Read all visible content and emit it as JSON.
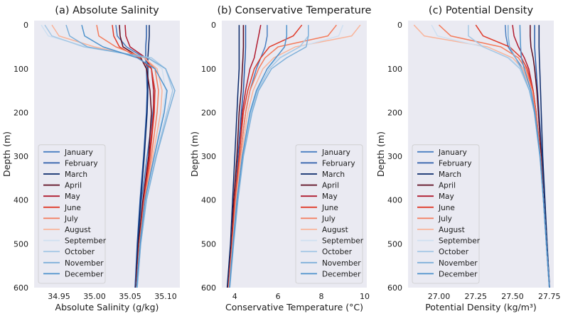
{
  "chart_data": [
    {
      "type": "line",
      "title": "(a) Absolute Salinity",
      "xlabel": "Absolute Salinity (g/kg)",
      "ylabel": "Depth (m)",
      "xlim": [
        34.915,
        35.12
      ],
      "ylim": [
        600,
        -10
      ],
      "xticks": [
        34.95,
        35.0,
        35.05,
        35.1
      ],
      "xtick_labels": [
        "34.95",
        "35.00",
        "35.05",
        "35.10"
      ],
      "yticks": [
        0,
        100,
        200,
        300,
        400,
        500,
        600
      ],
      "ytick_labels": [
        "0",
        "100",
        "200",
        "300",
        "400",
        "500",
        "600"
      ],
      "grid": false,
      "legend": "lower-left",
      "depth": [
        0,
        25,
        50,
        75,
        100,
        150,
        200,
        300,
        400,
        500,
        600
      ],
      "series": [
        {
          "name": "January",
          "color": "#4a7fc1",
          "values": [
            35.03,
            35.032,
            35.045,
            35.07,
            35.08,
            35.085,
            35.082,
            35.074,
            35.066,
            35.061,
            35.057
          ]
        },
        {
          "name": "February",
          "color": "#2a5ca8",
          "values": [
            35.073,
            35.073,
            35.072,
            35.072,
            35.073,
            35.074,
            35.073,
            35.069,
            35.064,
            35.06,
            35.057
          ]
        },
        {
          "name": "March",
          "color": "#0b2a6b",
          "values": [
            35.077,
            35.077,
            35.076,
            35.075,
            35.075,
            35.075,
            35.074,
            35.07,
            35.065,
            35.061,
            35.058
          ]
        },
        {
          "name": "April",
          "color": "#5c0a1e",
          "values": [
            35.035,
            35.036,
            35.04,
            35.065,
            35.073,
            35.078,
            35.08,
            35.076,
            35.068,
            35.062,
            35.058
          ]
        },
        {
          "name": "May",
          "color": "#b01b2f",
          "values": [
            35.043,
            35.044,
            35.05,
            35.072,
            35.08,
            35.083,
            35.083,
            35.077,
            35.069,
            35.063,
            35.059
          ]
        },
        {
          "name": "June",
          "color": "#e03b2a",
          "values": [
            35.025,
            35.027,
            35.035,
            35.062,
            35.08,
            35.085,
            35.084,
            35.078,
            35.07,
            35.063,
            35.059
          ]
        },
        {
          "name": "July",
          "color": "#f47c5c",
          "values": [
            35.003,
            35.006,
            35.03,
            35.07,
            35.085,
            35.09,
            35.088,
            35.08,
            35.07,
            35.063,
            35.059
          ]
        },
        {
          "name": "August",
          "color": "#f9b49a",
          "values": [
            34.94,
            34.95,
            35.0,
            35.07,
            35.088,
            35.095,
            35.093,
            35.082,
            35.071,
            35.064,
            35.059
          ]
        },
        {
          "name": "September",
          "color": "#cfe0f1",
          "values": [
            34.925,
            34.935,
            34.99,
            35.075,
            35.095,
            35.1,
            35.096,
            35.084,
            35.072,
            35.064,
            35.059
          ]
        },
        {
          "name": "October",
          "color": "#a6c8e5",
          "values": [
            34.93,
            34.94,
            34.985,
            35.08,
            35.1,
            35.11,
            35.102,
            35.086,
            35.073,
            35.065,
            35.06
          ]
        },
        {
          "name": "November",
          "color": "#7eb0d9",
          "values": [
            34.96,
            34.965,
            34.99,
            35.075,
            35.1,
            35.113,
            35.104,
            35.087,
            35.073,
            35.065,
            35.06
          ]
        },
        {
          "name": "December",
          "color": "#4f93cc",
          "values": [
            34.982,
            34.986,
            35.012,
            35.06,
            35.085,
            35.102,
            35.098,
            35.084,
            35.071,
            35.064,
            35.059
          ]
        }
      ]
    },
    {
      "type": "line",
      "title": "(b) Conservative Temperature",
      "xlabel": "Conservative Temperature (°C)",
      "ylabel": "Depth (m)",
      "xlim": [
        3.4,
        10.1
      ],
      "ylim": [
        600,
        -10
      ],
      "xticks": [
        4,
        6,
        8,
        10
      ],
      "xtick_labels": [
        "4",
        "6",
        "8",
        "10"
      ],
      "yticks": [
        0,
        100,
        200,
        300,
        400,
        500,
        600
      ],
      "ytick_labels": [
        "0",
        "100",
        "200",
        "300",
        "400",
        "500",
        "600"
      ],
      "grid": false,
      "legend": "lower-right",
      "depth": [
        0,
        25,
        50,
        75,
        100,
        150,
        200,
        300,
        400,
        500,
        600
      ],
      "series": [
        {
          "name": "January",
          "color": "#4a7fc1",
          "values": [
            5.5,
            5.5,
            5.4,
            5.2,
            5.0,
            4.7,
            4.5,
            4.25,
            4.05,
            3.85,
            3.7
          ]
        },
        {
          "name": "February",
          "color": "#2a5ca8",
          "values": [
            4.5,
            4.5,
            4.5,
            4.48,
            4.45,
            4.4,
            4.3,
            4.15,
            4.0,
            3.85,
            3.7
          ]
        },
        {
          "name": "March",
          "color": "#0b2a6b",
          "values": [
            4.2,
            4.2,
            4.2,
            4.2,
            4.2,
            4.15,
            4.1,
            4.0,
            3.9,
            3.8,
            3.65
          ]
        },
        {
          "name": "April",
          "color": "#5c0a1e",
          "values": [
            4.4,
            4.4,
            4.4,
            4.38,
            4.35,
            4.3,
            4.2,
            4.1,
            3.95,
            3.85,
            3.7
          ]
        },
        {
          "name": "May",
          "color": "#b01b2f",
          "values": [
            5.2,
            5.1,
            5.0,
            4.9,
            4.7,
            4.5,
            4.35,
            4.2,
            4.0,
            3.87,
            3.7
          ]
        },
        {
          "name": "June",
          "color": "#e03b2a",
          "values": [
            7.1,
            6.7,
            5.6,
            5.2,
            4.9,
            4.6,
            4.4,
            4.2,
            4.0,
            3.87,
            3.72
          ]
        },
        {
          "name": "July",
          "color": "#f47c5c",
          "values": [
            8.7,
            8.3,
            6.0,
            5.4,
            5.1,
            4.7,
            4.5,
            4.25,
            4.05,
            3.9,
            3.72
          ]
        },
        {
          "name": "August",
          "color": "#f9b49a",
          "values": [
            9.8,
            9.4,
            6.8,
            5.8,
            5.3,
            4.85,
            4.6,
            4.3,
            4.07,
            3.9,
            3.73
          ]
        },
        {
          "name": "September",
          "color": "#cfe0f1",
          "values": [
            9.0,
            8.8,
            7.0,
            6.0,
            5.5,
            5.0,
            4.7,
            4.35,
            4.1,
            3.92,
            3.75
          ]
        },
        {
          "name": "October",
          "color": "#a6c8e5",
          "values": [
            7.4,
            7.4,
            7.0,
            6.1,
            5.6,
            5.05,
            4.75,
            4.37,
            4.12,
            3.93,
            3.76
          ]
        },
        {
          "name": "November",
          "color": "#7eb0d9",
          "values": [
            7.4,
            7.4,
            7.3,
            6.4,
            5.7,
            5.1,
            4.8,
            4.4,
            4.15,
            3.95,
            3.77
          ]
        },
        {
          "name": "December",
          "color": "#4f93cc",
          "values": [
            6.4,
            6.4,
            6.3,
            5.9,
            5.5,
            5.0,
            4.7,
            4.35,
            4.1,
            3.92,
            3.75
          ]
        }
      ]
    },
    {
      "type": "line",
      "title": "(c) Potential Density",
      "xlabel": "Potential Density (kg/m³)",
      "ylabel": "Depth (m)",
      "xlim": [
        26.79,
        27.78
      ],
      "ylim": [
        600,
        -10
      ],
      "xticks": [
        27.0,
        27.25,
        27.5,
        27.75
      ],
      "xtick_labels": [
        "27.00",
        "27.25",
        "27.50",
        "27.75"
      ],
      "yticks": [
        0,
        100,
        200,
        300,
        400,
        500,
        600
      ],
      "ytick_labels": [
        "0",
        "100",
        "200",
        "300",
        "400",
        "500",
        "600"
      ],
      "grid": false,
      "legend": "lower-left",
      "depth": [
        0,
        25,
        50,
        75,
        100,
        150,
        200,
        300,
        400,
        500,
        600
      ],
      "series": [
        {
          "name": "January",
          "color": "#4a7fc1",
          "values": [
            27.45,
            27.455,
            27.47,
            27.52,
            27.57,
            27.62,
            27.65,
            27.69,
            27.71,
            27.73,
            27.75
          ]
        },
        {
          "name": "February",
          "color": "#2a5ca8",
          "values": [
            27.65,
            27.65,
            27.65,
            27.655,
            27.66,
            27.67,
            27.68,
            27.7,
            27.715,
            27.73,
            27.75
          ]
        },
        {
          "name": "March",
          "color": "#0b2a6b",
          "values": [
            27.68,
            27.68,
            27.68,
            27.682,
            27.685,
            27.69,
            27.695,
            27.705,
            27.72,
            27.735,
            27.752
          ]
        },
        {
          "name": "April",
          "color": "#5c0a1e",
          "values": [
            27.62,
            27.62,
            27.625,
            27.64,
            27.65,
            27.665,
            27.675,
            27.695,
            27.712,
            27.73,
            27.75
          ]
        },
        {
          "name": "May",
          "color": "#b01b2f",
          "values": [
            27.5,
            27.51,
            27.54,
            27.58,
            27.61,
            27.64,
            27.66,
            27.69,
            27.71,
            27.73,
            27.75
          ]
        },
        {
          "name": "June",
          "color": "#e03b2a",
          "values": [
            27.25,
            27.3,
            27.48,
            27.56,
            27.6,
            27.64,
            27.66,
            27.69,
            27.71,
            27.73,
            27.75
          ]
        },
        {
          "name": "July",
          "color": "#f47c5c",
          "values": [
            27.0,
            27.08,
            27.42,
            27.54,
            27.59,
            27.635,
            27.658,
            27.69,
            27.71,
            27.73,
            27.75
          ]
        },
        {
          "name": "August",
          "color": "#f9b49a",
          "values": [
            26.83,
            26.9,
            27.33,
            27.5,
            27.57,
            27.625,
            27.652,
            27.688,
            27.71,
            27.73,
            27.75
          ]
        },
        {
          "name": "September",
          "color": "#cfe0f1",
          "values": [
            26.95,
            26.99,
            27.3,
            27.48,
            27.56,
            27.62,
            27.65,
            27.688,
            27.71,
            27.73,
            27.75
          ]
        },
        {
          "name": "October",
          "color": "#a6c8e5",
          "values": [
            27.2,
            27.2,
            27.3,
            27.47,
            27.55,
            27.615,
            27.648,
            27.686,
            27.71,
            27.73,
            27.75
          ]
        },
        {
          "name": "November",
          "color": "#7eb0d9",
          "values": [
            27.47,
            27.47,
            27.48,
            27.52,
            27.56,
            27.615,
            27.648,
            27.686,
            27.71,
            27.73,
            27.75
          ]
        },
        {
          "name": "December",
          "color": "#4f93cc",
          "values": [
            27.55,
            27.552,
            27.555,
            27.56,
            27.58,
            27.625,
            27.652,
            27.688,
            27.71,
            27.73,
            27.75
          ]
        }
      ]
    }
  ]
}
